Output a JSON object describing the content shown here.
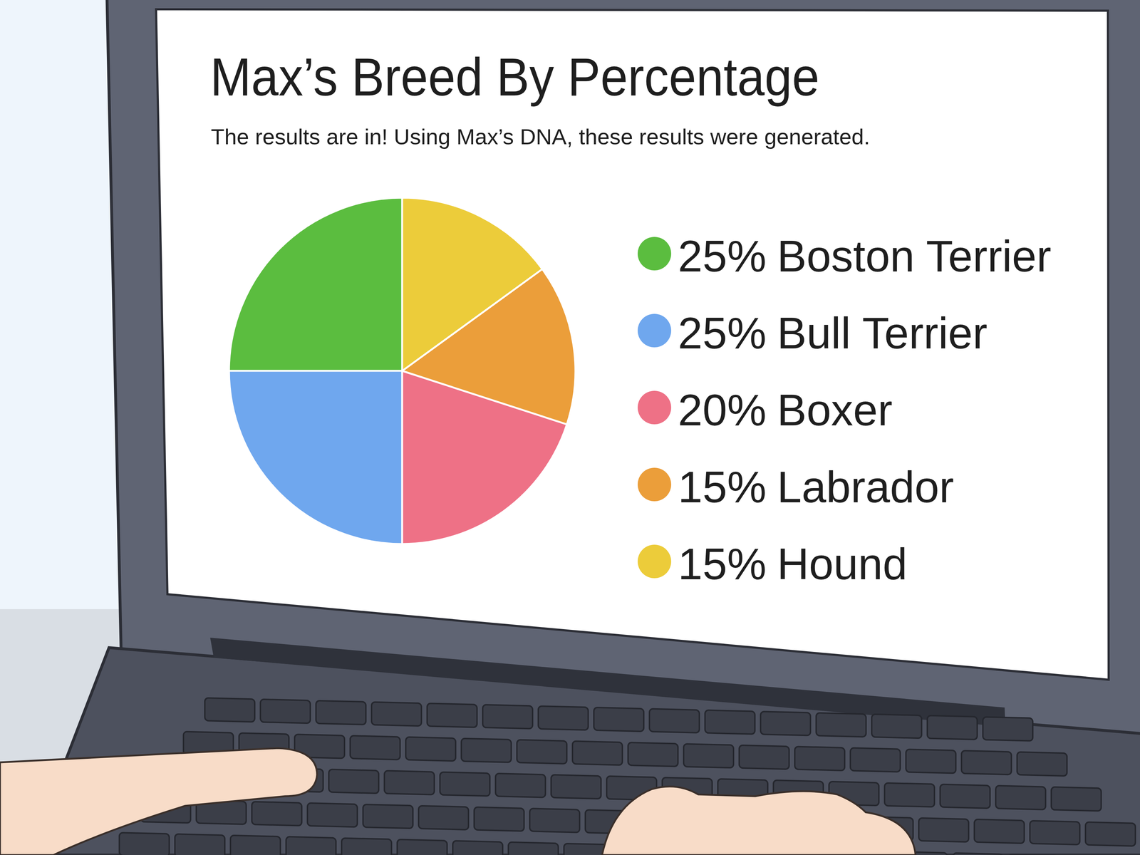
{
  "chart_data": {
    "type": "pie",
    "title": "Max’s Breed By Percentage",
    "subtitle": "The results are in! Using Max’s DNA, these results were generated.",
    "categories": [
      "Boston Terrier",
      "Bull Terrier",
      "Boxer",
      "Labrador",
      "Hound"
    ],
    "values": [
      25,
      25,
      20,
      15,
      15
    ],
    "value_labels": [
      "25%",
      "25%",
      "20%",
      "15%",
      "15%"
    ],
    "colors": [
      "#5bbd3f",
      "#6fa7ee",
      "#ee7186",
      "#eb9e3a",
      "#eccc3a"
    ],
    "legend": "right"
  }
}
